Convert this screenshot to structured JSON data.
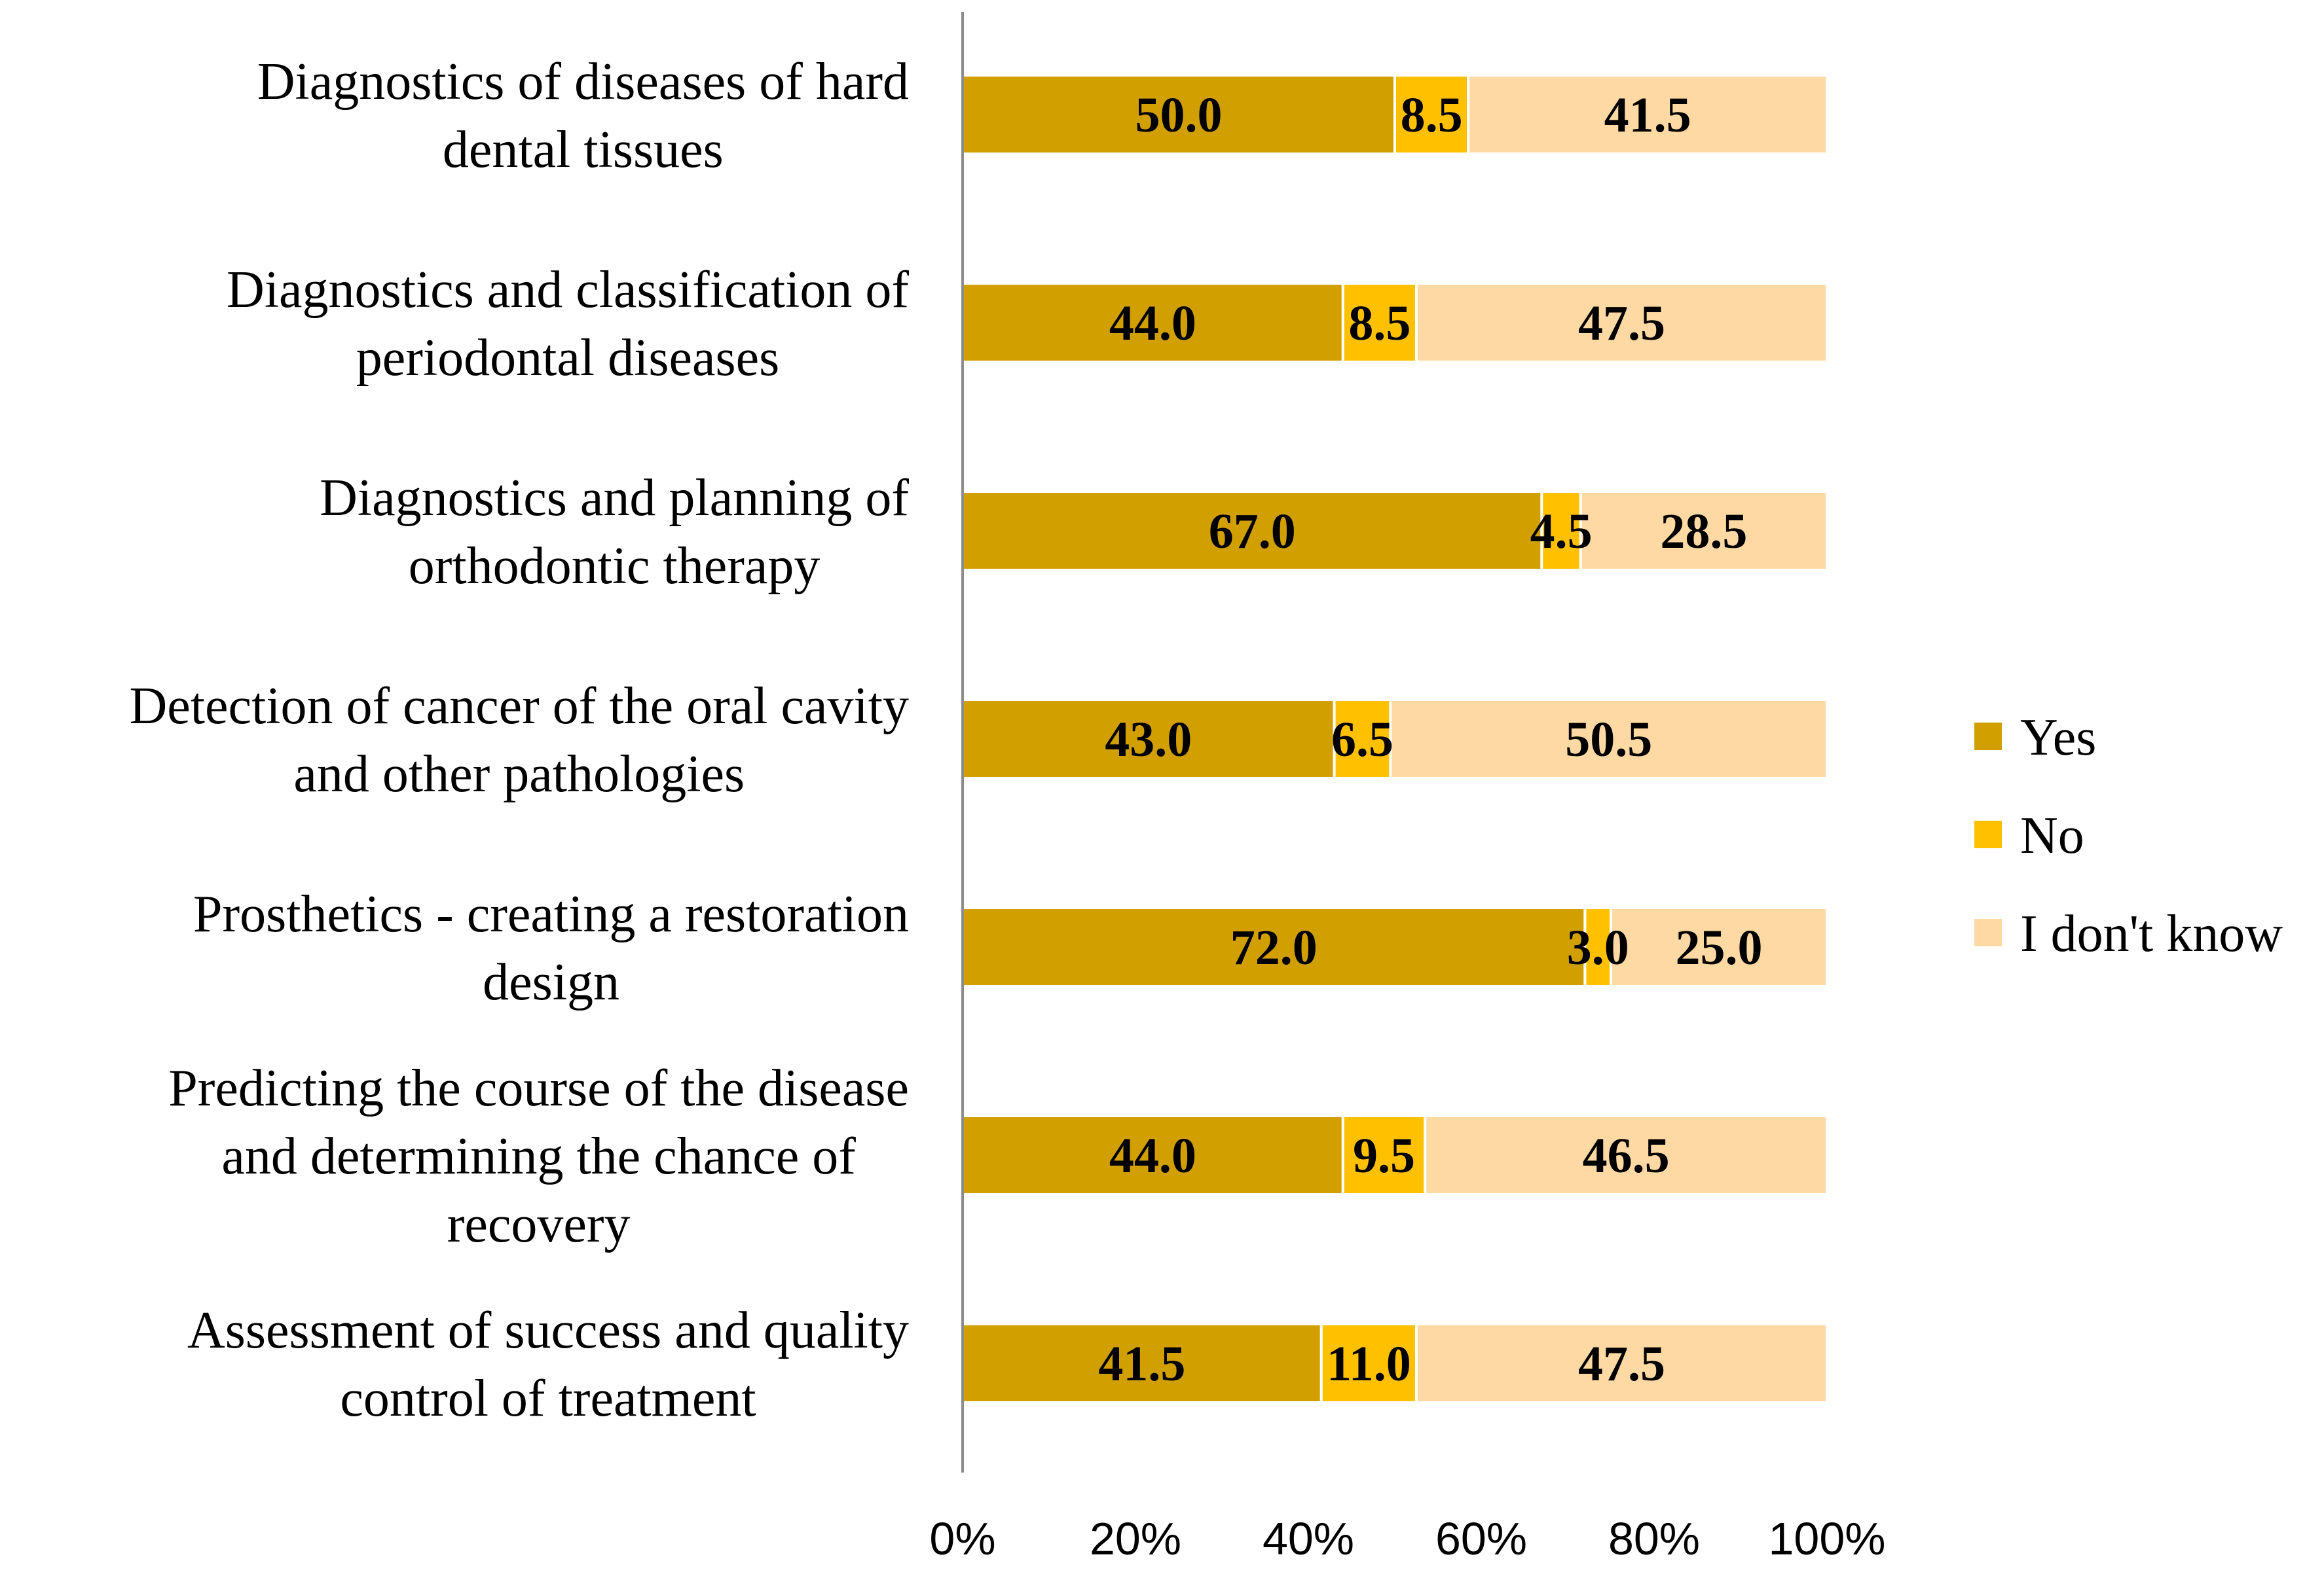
{
  "chart_data": {
    "type": "bar",
    "orientation": "horizontal",
    "stacked": true,
    "percent_stacked": true,
    "title": "",
    "xlabel": "",
    "ylabel": "",
    "xlim": [
      0,
      100
    ],
    "x_ticks": [
      "0%",
      "20%",
      "40%",
      "60%",
      "80%",
      "100%"
    ],
    "grid": false,
    "legend_position": "right",
    "categories": [
      [
        "Diagnostics of diseases of hard",
        "dental tissues"
      ],
      [
        "Diagnostics and classification of",
        "periodontal diseases"
      ],
      [
        "Diagnostics and planning of",
        "orthodontic therapy"
      ],
      [
        "Detection of cancer of the oral cavity",
        "and other pathologies"
      ],
      [
        "Prosthetics - creating a restoration",
        "design"
      ],
      [
        "Predicting the course of the disease",
        "and determining the chance of",
        "recovery"
      ],
      [
        "Assessment of success and quality",
        "control of treatment"
      ]
    ],
    "series": [
      {
        "name": "Yes",
        "color": "#D19F00",
        "values": [
          50.0,
          44.0,
          67.0,
          43.0,
          72.0,
          44.0,
          41.5
        ],
        "labels": [
          "50.0",
          "44.0",
          "67.0",
          "43.0",
          "72.0",
          "44.0",
          "41.5"
        ]
      },
      {
        "name": "No",
        "color": "#FFC000",
        "values": [
          8.5,
          8.5,
          4.5,
          6.5,
          3.0,
          9.5,
          11.0
        ],
        "labels": [
          "8.5",
          "8.5",
          "4.5",
          "6.5",
          "3.0",
          "9.5",
          "11.0"
        ]
      },
      {
        "name": "I don't know",
        "color": "#FFD9A3",
        "values": [
          41.5,
          47.5,
          28.5,
          50.5,
          25.0,
          46.5,
          47.5
        ],
        "labels": [
          "41.5",
          "47.5",
          "28.5",
          "50.5",
          "25.0",
          "46.5",
          "47.5"
        ]
      }
    ]
  }
}
